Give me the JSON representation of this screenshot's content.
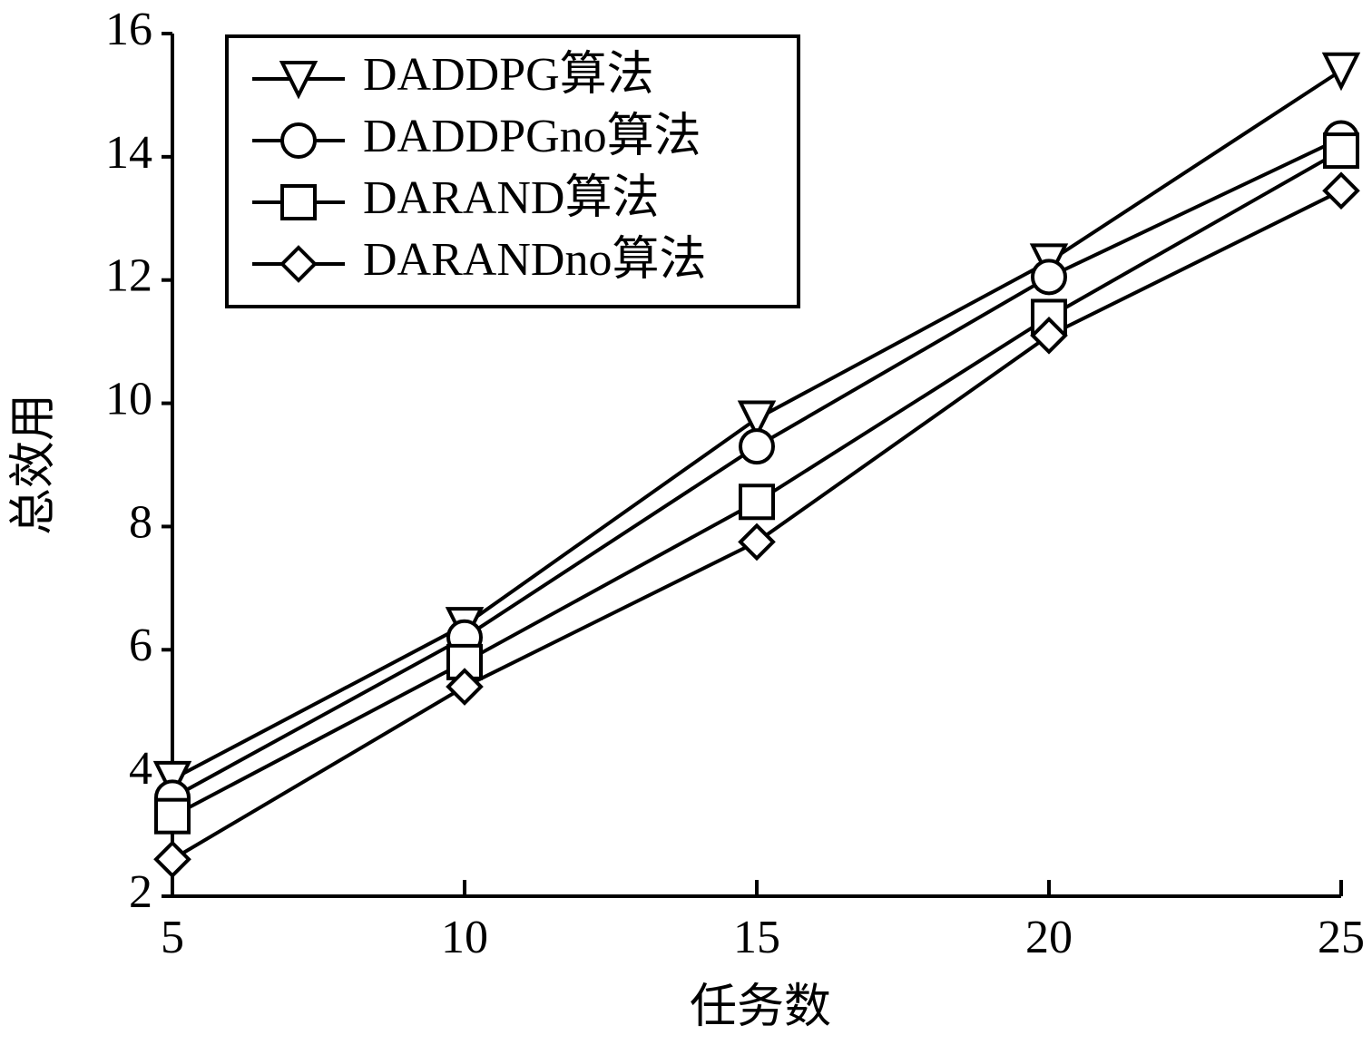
{
  "chart_data": {
    "type": "line",
    "x_label": "任务数",
    "y_label": "总效用",
    "x": [
      5,
      10,
      15,
      20,
      25
    ],
    "series": [
      {
        "name": "DADDPG算法",
        "color": "#000000",
        "marker": "triangle-down",
        "values": [
          3.9,
          6.4,
          9.75,
          12.3,
          15.4
        ]
      },
      {
        "name": "DADDPGno算法",
        "color": "#000000",
        "marker": "circle",
        "values": [
          3.6,
          6.2,
          9.3,
          12.05,
          14.3
        ]
      },
      {
        "name": "DARAND算法",
        "color": "#000000",
        "marker": "square",
        "values": [
          3.3,
          5.8,
          8.4,
          11.4,
          14.1
        ]
      },
      {
        "name": "DARANDno算法",
        "color": "#000000",
        "marker": "diamond",
        "values": [
          2.6,
          5.4,
          7.75,
          11.1,
          13.45
        ]
      }
    ],
    "xlim": [
      5,
      25
    ],
    "xticks": [
      5,
      10,
      15,
      20,
      25
    ],
    "ylim": [
      2,
      16
    ],
    "yticks": [
      2,
      4,
      6,
      8,
      10,
      12,
      14,
      16
    ],
    "legend": "upper-left"
  }
}
